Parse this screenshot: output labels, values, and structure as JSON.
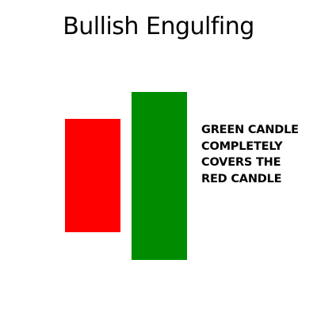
{
  "title": "Bullish Engulfing",
  "candles": {
    "red": {
      "label": "red candle",
      "color": "#ff0000"
    },
    "green": {
      "label": "green candle",
      "color": "#008c00"
    }
  },
  "annotation": {
    "lines": [
      "GREEN CANDLE",
      "COMPLETELY",
      "COVERS THE",
      "RED CANDLE"
    ]
  }
}
